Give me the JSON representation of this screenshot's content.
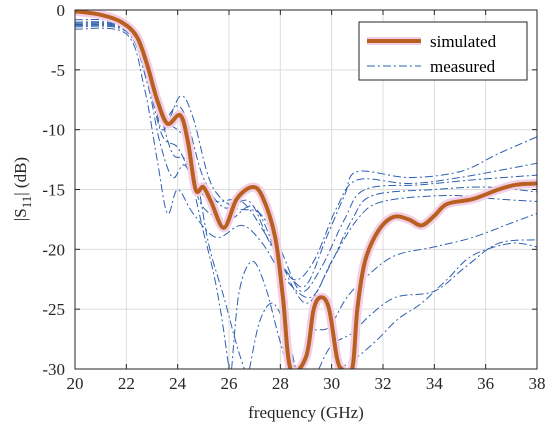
{
  "chart_data": {
    "type": "line",
    "xlabel": "frequency (GHz)",
    "ylabel": "|S11| (dB)",
    "ylabel_main": "|S",
    "ylabel_sub": "11",
    "ylabel_rest": "| (dB)",
    "xlim": [
      20,
      38
    ],
    "ylim": [
      -30,
      0
    ],
    "xticks": [
      20,
      22,
      24,
      26,
      28,
      30,
      32,
      34,
      36,
      38
    ],
    "yticks": [
      0,
      -5,
      -10,
      -15,
      -20,
      -25,
      -30
    ],
    "grid": true,
    "legend_position": "top-right",
    "legend": [
      {
        "label": "simulated",
        "style": "solid",
        "color": "#b8601f"
      },
      {
        "label": "measured",
        "style": "dashdot",
        "color": "#2d5fb0"
      }
    ],
    "colors": {
      "simulated": "#b8601f",
      "simulated_halo": "#f2cfe6",
      "measured": "#2d5fb0"
    },
    "simulated": [
      [
        20.0,
        -0.1
      ],
      [
        21.0,
        -0.4
      ],
      [
        21.8,
        -1.0
      ],
      [
        22.4,
        -2.2
      ],
      [
        22.8,
        -4.5
      ],
      [
        23.2,
        -7.5
      ],
      [
        23.6,
        -9.5
      ],
      [
        24.1,
        -8.8
      ],
      [
        24.4,
        -11.0
      ],
      [
        24.7,
        -15.0
      ],
      [
        25.0,
        -14.8
      ],
      [
        25.3,
        -16.0
      ],
      [
        25.8,
        -18.2
      ],
      [
        26.3,
        -15.8
      ],
      [
        26.9,
        -14.8
      ],
      [
        27.3,
        -15.6
      ],
      [
        27.8,
        -19.0
      ],
      [
        28.1,
        -24.0
      ],
      [
        28.4,
        -30.0
      ],
      [
        29.0,
        -29.0
      ],
      [
        29.3,
        -25.0
      ],
      [
        29.6,
        -24.0
      ],
      [
        29.9,
        -25.0
      ],
      [
        30.2,
        -29.0
      ],
      [
        30.4,
        -30.0
      ],
      [
        30.8,
        -30.0
      ],
      [
        31.0,
        -25.0
      ],
      [
        31.3,
        -21.0
      ],
      [
        31.8,
        -18.5
      ],
      [
        32.4,
        -17.3
      ],
      [
        33.0,
        -17.5
      ],
      [
        33.5,
        -18.0
      ],
      [
        34.0,
        -17.2
      ],
      [
        34.5,
        -16.2
      ],
      [
        35.5,
        -15.8
      ],
      [
        36.5,
        -15.0
      ],
      [
        37.2,
        -14.6
      ],
      [
        38.0,
        -14.5
      ]
    ],
    "measured": [
      [
        [
          20.0,
          -0.8
        ],
        [
          22.0,
          -1.2
        ],
        [
          22.8,
          -4.5
        ],
        [
          23.3,
          -8.5
        ],
        [
          23.8,
          -12.0
        ],
        [
          24.3,
          -12.5
        ],
        [
          24.8,
          -15.0
        ],
        [
          25.5,
          -16.0
        ],
        [
          26.5,
          -16.0
        ],
        [
          27.5,
          -19.0
        ],
        [
          28.3,
          -22.0
        ],
        [
          29.0,
          -23.0
        ],
        [
          29.8,
          -19.0
        ],
        [
          30.5,
          -15.5
        ],
        [
          31.0,
          -13.5
        ],
        [
          33.0,
          -14.0
        ],
        [
          35.0,
          -13.5
        ],
        [
          36.5,
          -12.0
        ],
        [
          38.0,
          -10.6
        ]
      ],
      [
        [
          20.0,
          -1.0
        ],
        [
          22.0,
          -1.4
        ],
        [
          22.9,
          -5.0
        ],
        [
          23.4,
          -9.0
        ],
        [
          24.0,
          -8.0
        ],
        [
          24.4,
          -9.5
        ],
        [
          25.0,
          -14.0
        ],
        [
          25.8,
          -16.5
        ],
        [
          26.8,
          -16.0
        ],
        [
          27.6,
          -19.5
        ],
        [
          28.5,
          -22.5
        ],
        [
          29.3,
          -21.0
        ],
        [
          30.2,
          -16.5
        ],
        [
          31.0,
          -14.2
        ],
        [
          33.0,
          -14.5
        ],
        [
          35.0,
          -14.0
        ],
        [
          38.0,
          -12.8
        ]
      ],
      [
        [
          20.0,
          -1.2
        ],
        [
          22.0,
          -1.6
        ],
        [
          22.9,
          -5.5
        ],
        [
          23.4,
          -10.0
        ],
        [
          24.1,
          -7.2
        ],
        [
          24.6,
          -9.0
        ],
        [
          25.3,
          -14.5
        ],
        [
          26.2,
          -16.5
        ],
        [
          27.2,
          -17.0
        ],
        [
          28.0,
          -20.0
        ],
        [
          28.8,
          -23.5
        ],
        [
          29.6,
          -21.5
        ],
        [
          30.5,
          -17.5
        ],
        [
          31.3,
          -15.0
        ],
        [
          33.5,
          -14.6
        ],
        [
          35.5,
          -14.2
        ],
        [
          38.0,
          -13.8
        ]
      ],
      [
        [
          20.0,
          -1.4
        ],
        [
          22.0,
          -1.8
        ],
        [
          22.8,
          -6.0
        ],
        [
          23.3,
          -11.0
        ],
        [
          23.8,
          -14.0
        ],
        [
          24.3,
          -13.0
        ],
        [
          25.0,
          -16.5
        ],
        [
          26.0,
          -17.5
        ],
        [
          27.0,
          -16.5
        ],
        [
          28.0,
          -21.0
        ],
        [
          29.0,
          -24.5
        ],
        [
          29.9,
          -21.5
        ],
        [
          30.8,
          -17.5
        ],
        [
          31.6,
          -15.5
        ],
        [
          34.0,
          -15.0
        ],
        [
          36.0,
          -14.8
        ],
        [
          38.0,
          -15.2
        ]
      ],
      [
        [
          20.0,
          -1.6
        ],
        [
          22.0,
          -2.0
        ],
        [
          22.7,
          -6.5
        ],
        [
          23.2,
          -12.5
        ],
        [
          23.6,
          -17.0
        ],
        [
          24.0,
          -15.0
        ],
        [
          24.6,
          -17.0
        ],
        [
          25.5,
          -19.0
        ],
        [
          26.5,
          -18.0
        ],
        [
          27.3,
          -19.5
        ],
        [
          28.2,
          -22.5
        ],
        [
          29.2,
          -24.0
        ],
        [
          30.0,
          -21.0
        ],
        [
          31.0,
          -17.5
        ],
        [
          32.0,
          -16.0
        ],
        [
          34.5,
          -15.5
        ],
        [
          36.5,
          -15.8
        ],
        [
          38.0,
          -16.0
        ]
      ],
      [
        [
          20.0,
          -1.1
        ],
        [
          22.0,
          -1.5
        ],
        [
          22.9,
          -5.2
        ],
        [
          23.5,
          -9.0
        ],
        [
          24.2,
          -10.5
        ],
        [
          24.7,
          -13.5
        ],
        [
          25.2,
          -19.5
        ],
        [
          25.8,
          -24.0
        ],
        [
          26.3,
          -28.0
        ],
        [
          26.6,
          -30.0
        ]
      ],
      [
        [
          20.0,
          -1.3
        ],
        [
          22.0,
          -1.7
        ],
        [
          22.8,
          -5.8
        ],
        [
          23.4,
          -10.5
        ],
        [
          24.0,
          -11.5
        ],
        [
          24.5,
          -14.0
        ],
        [
          25.0,
          -18.5
        ],
        [
          25.4,
          -22.0
        ],
        [
          25.7,
          -25.5
        ],
        [
          26.0,
          -30.0
        ]
      ],
      [
        [
          26.1,
          -30.0
        ],
        [
          26.4,
          -23.5
        ],
        [
          26.9,
          -21.0
        ],
        [
          27.4,
          -23.0
        ],
        [
          27.9,
          -27.0
        ],
        [
          28.3,
          -30.0
        ]
      ],
      [
        [
          26.8,
          -30.0
        ],
        [
          27.2,
          -26.0
        ],
        [
          27.7,
          -24.5
        ],
        [
          28.2,
          -26.5
        ],
        [
          28.6,
          -30.0
        ]
      ],
      [
        [
          28.7,
          -30.0
        ],
        [
          29.2,
          -27.0
        ],
        [
          29.9,
          -26.5
        ],
        [
          30.6,
          -24.0
        ],
        [
          31.5,
          -22.0
        ],
        [
          32.5,
          -20.5
        ],
        [
          34.0,
          -19.8
        ],
        [
          35.5,
          -19.0
        ],
        [
          37.0,
          -17.8
        ],
        [
          38.0,
          -17.0
        ]
      ],
      [
        [
          29.5,
          -30.0
        ],
        [
          30.0,
          -28.0
        ],
        [
          30.8,
          -27.0
        ],
        [
          31.5,
          -25.5
        ],
        [
          32.5,
          -24.0
        ],
        [
          34.0,
          -23.5
        ],
        [
          35.2,
          -21.5
        ],
        [
          36.5,
          -19.5
        ],
        [
          38.0,
          -19.2
        ]
      ],
      [
        [
          30.3,
          -30.0
        ],
        [
          31.0,
          -29.0
        ],
        [
          31.8,
          -27.5
        ],
        [
          32.6,
          -25.8
        ],
        [
          33.5,
          -24.5
        ],
        [
          34.5,
          -22.5
        ],
        [
          35.5,
          -20.5
        ],
        [
          37.0,
          -19.5
        ],
        [
          38.0,
          -19.8
        ]
      ]
    ]
  }
}
